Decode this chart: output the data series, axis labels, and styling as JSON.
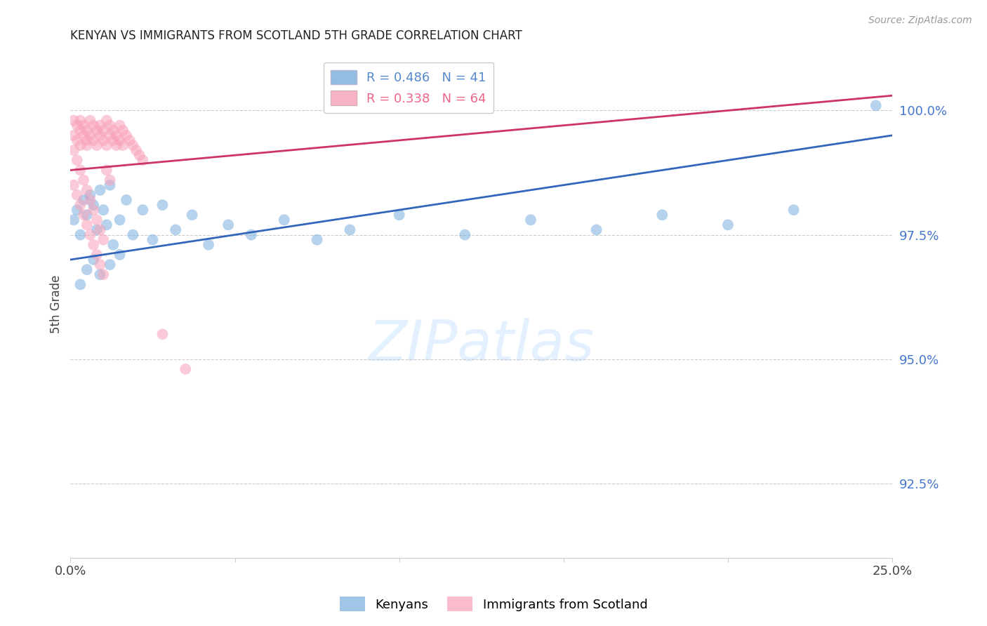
{
  "title": "KENYAN VS IMMIGRANTS FROM SCOTLAND 5TH GRADE CORRELATION CHART",
  "source": "Source: ZipAtlas.com",
  "ylabel": "5th Grade",
  "yticks": [
    92.5,
    95.0,
    97.5,
    100.0
  ],
  "ytick_labels": [
    "92.5%",
    "95.0%",
    "97.5%",
    "100.0%"
  ],
  "xlim": [
    0.0,
    0.25
  ],
  "ylim": [
    91.0,
    101.2
  ],
  "legend_entries": [
    {
      "label": "R = 0.486   N = 41",
      "color": "#5588cc"
    },
    {
      "label": "R = 0.338   N = 64",
      "color": "#ee6688"
    }
  ],
  "legend_labels": [
    "Kenyans",
    "Immigrants from Scotland"
  ],
  "kenyan_color": "#7aaddd",
  "scotland_color": "#f8a0b8",
  "trendline_kenyan_color": "#3366bb",
  "trendline_scotland_color": "#cc3366",
  "kenyan_x": [
    0.001,
    0.002,
    0.003,
    0.004,
    0.005,
    0.006,
    0.007,
    0.008,
    0.009,
    0.01,
    0.011,
    0.012,
    0.013,
    0.015,
    0.017,
    0.019,
    0.022,
    0.025,
    0.028,
    0.032,
    0.037,
    0.042,
    0.048,
    0.055,
    0.065,
    0.075,
    0.085,
    0.1,
    0.12,
    0.14,
    0.16,
    0.18,
    0.2,
    0.22,
    0.003,
    0.005,
    0.007,
    0.009,
    0.012,
    0.015,
    0.245
  ],
  "kenyan_y": [
    97.8,
    98.0,
    97.5,
    98.2,
    97.9,
    98.3,
    98.1,
    97.6,
    98.4,
    98.0,
    97.7,
    98.5,
    97.3,
    97.8,
    98.2,
    97.5,
    98.0,
    97.4,
    98.1,
    97.6,
    97.9,
    97.3,
    97.7,
    97.5,
    97.8,
    97.4,
    97.6,
    97.9,
    97.5,
    97.8,
    97.6,
    97.9,
    97.7,
    98.0,
    96.5,
    96.8,
    97.0,
    96.7,
    96.9,
    97.1,
    100.1
  ],
  "kenyan_trendline_x": [
    0.0,
    0.25
  ],
  "kenyan_trendline_y": [
    97.0,
    99.5
  ],
  "scotland_trendline_x": [
    0.0,
    0.25
  ],
  "scotland_trendline_y": [
    98.8,
    100.3
  ],
  "scotland_x": [
    0.001,
    0.001,
    0.002,
    0.002,
    0.003,
    0.003,
    0.003,
    0.004,
    0.004,
    0.005,
    0.005,
    0.005,
    0.006,
    0.006,
    0.007,
    0.007,
    0.008,
    0.008,
    0.009,
    0.009,
    0.01,
    0.01,
    0.011,
    0.011,
    0.012,
    0.012,
    0.013,
    0.013,
    0.014,
    0.014,
    0.015,
    0.015,
    0.016,
    0.016,
    0.017,
    0.018,
    0.019,
    0.02,
    0.021,
    0.022,
    0.001,
    0.002,
    0.003,
    0.004,
    0.005,
    0.006,
    0.007,
    0.008,
    0.009,
    0.01,
    0.001,
    0.002,
    0.003,
    0.004,
    0.005,
    0.006,
    0.007,
    0.008,
    0.009,
    0.01,
    0.011,
    0.012,
    0.028,
    0.035
  ],
  "scotland_y": [
    99.8,
    99.5,
    99.7,
    99.4,
    99.6,
    99.3,
    99.8,
    99.5,
    99.7,
    99.4,
    99.6,
    99.3,
    99.8,
    99.5,
    99.7,
    99.4,
    99.6,
    99.3,
    99.5,
    99.7,
    99.4,
    99.6,
    99.3,
    99.8,
    99.5,
    99.7,
    99.4,
    99.6,
    99.3,
    99.5,
    99.7,
    99.4,
    99.6,
    99.3,
    99.5,
    99.4,
    99.3,
    99.2,
    99.1,
    99.0,
    99.2,
    99.0,
    98.8,
    98.6,
    98.4,
    98.2,
    98.0,
    97.8,
    97.6,
    97.4,
    98.5,
    98.3,
    98.1,
    97.9,
    97.7,
    97.5,
    97.3,
    97.1,
    96.9,
    96.7,
    98.8,
    98.6,
    95.5,
    94.8
  ]
}
